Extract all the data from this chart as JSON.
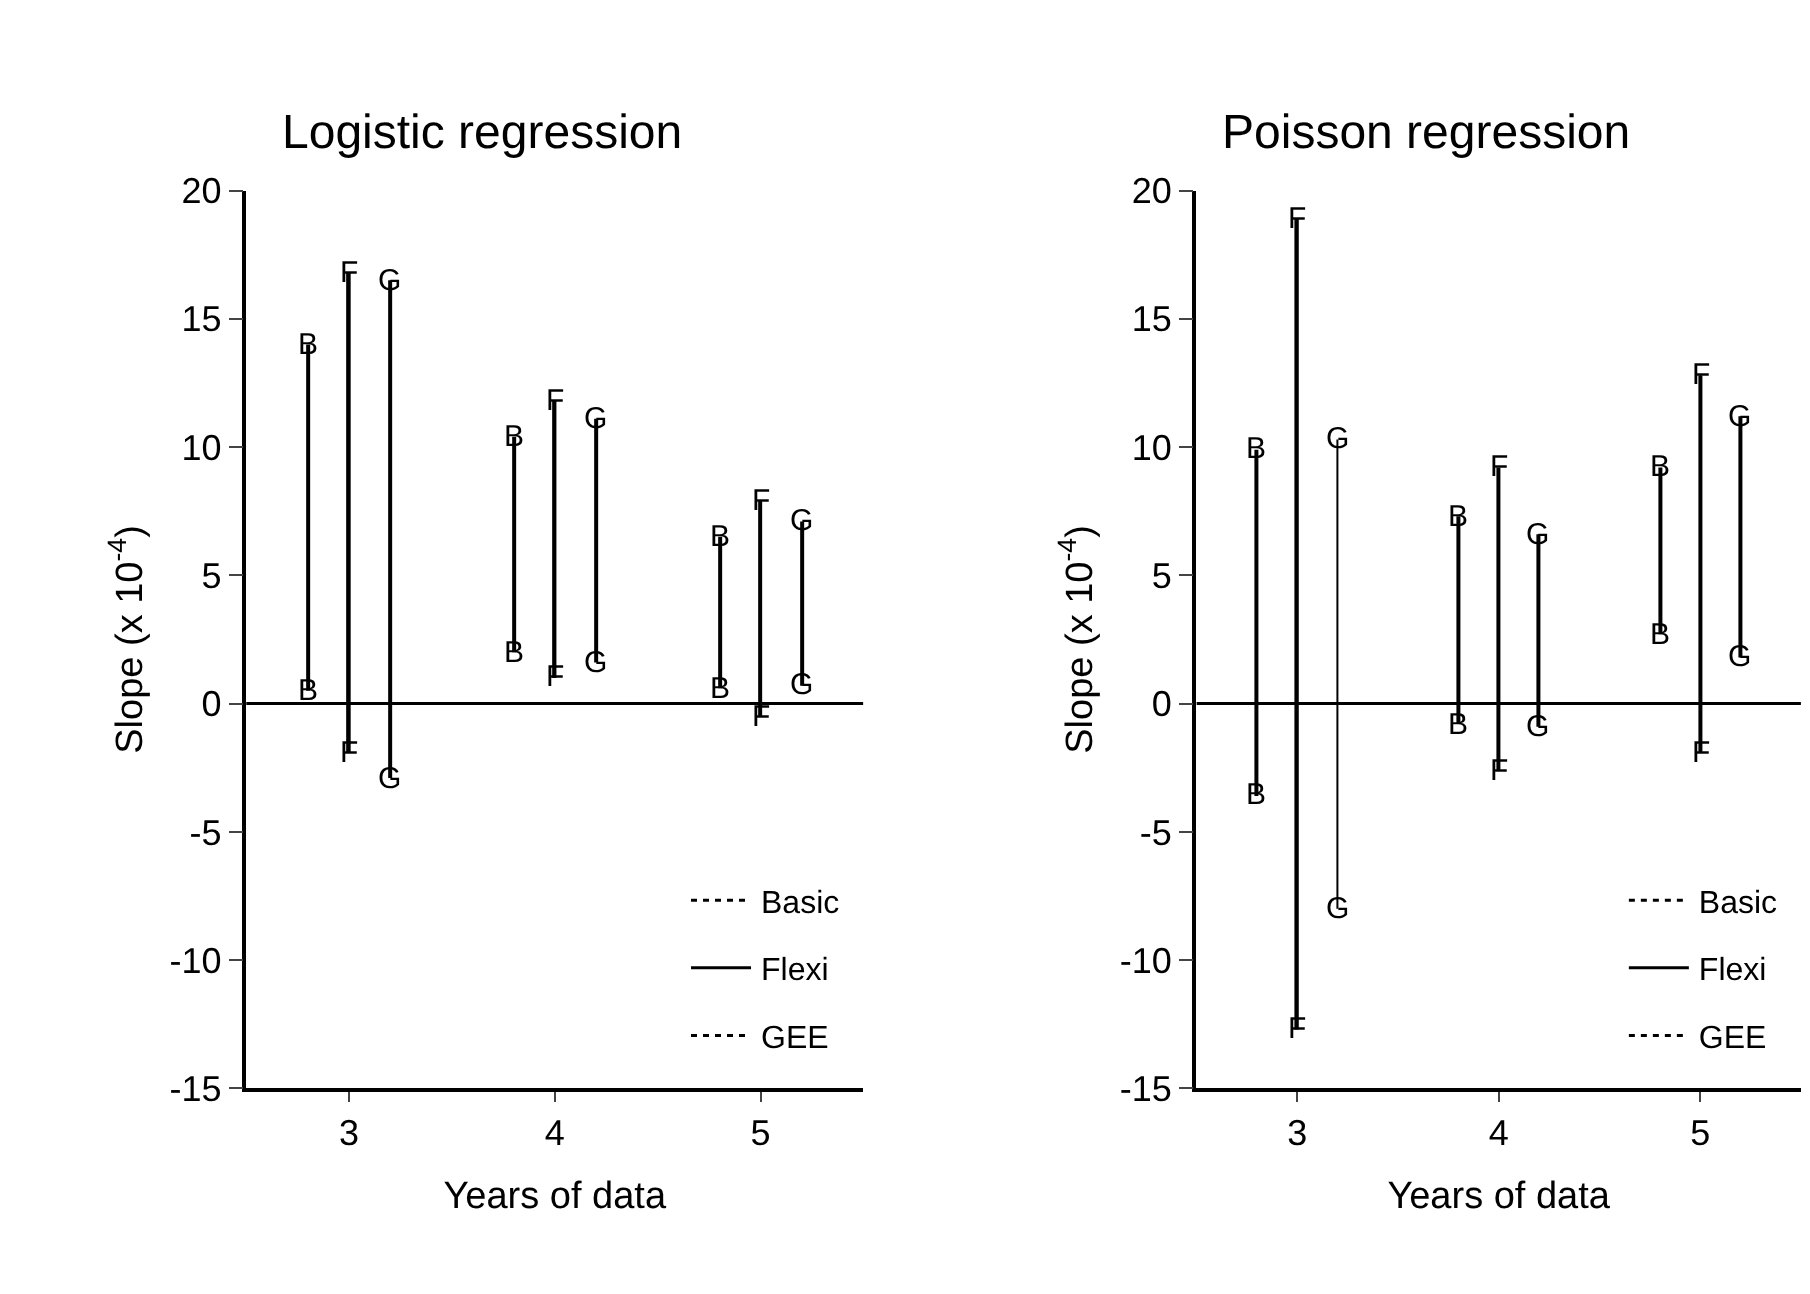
{
  "chart_data": [
    {
      "type": "bar",
      "title": "Logistic regression",
      "xlabel": "Years of data",
      "ylabel": "Slope (x 10$^{-4}$)",
      "xlim": [
        2.5,
        5.5
      ],
      "xticks": [
        3,
        4,
        5
      ],
      "ylim": [
        -15,
        20
      ],
      "yticks": [
        -15,
        -10,
        -5,
        0,
        5,
        10,
        15,
        20
      ],
      "legend": "bottom right",
      "ref_lines": [
        {
          "axis": "y",
          "value": 0,
          "color": "#000000",
          "line_style": "solid"
        }
      ],
      "series": [
        {
          "name": "Basic",
          "color": "#000000",
          "line_style": "dotted",
          "x": [
            2.8,
            3.8,
            4.8
          ],
          "base": [
            0.5,
            2.0,
            0.6
          ],
          "values": [
            13.5,
            8.4,
            5.9
          ]
        },
        {
          "name": "Flexi",
          "color": "#000000",
          "line_style": "solid",
          "x": [
            3,
            4,
            5
          ],
          "base": [
            -1.9,
            1.0,
            -0.5
          ],
          "values": [
            18.7,
            10.8,
            8.4
          ]
        },
        {
          "name": "GEE",
          "color": "#000000",
          "line_style": "dotted",
          "x": [
            3.2,
            4.2,
            5.2
          ],
          "base": [
            -2.9,
            1.6,
            0.7
          ],
          "values": [
            19.4,
            9.5,
            6.4
          ]
        }
      ],
      "annotations": [
        {
          "text": "B",
          "x": 2.8,
          "y": 14.0
        },
        {
          "text": "B",
          "x": 2.8,
          "y": 0.5
        },
        {
          "text": "B",
          "x": 3.8,
          "y": 10.4
        },
        {
          "text": "B",
          "x": 3.8,
          "y": 2.0
        },
        {
          "text": "B",
          "x": 4.8,
          "y": 6.5
        },
        {
          "text": "B",
          "x": 4.8,
          "y": 0.6
        },
        {
          "text": "F",
          "x": 3,
          "y": 16.8
        },
        {
          "text": "F",
          "x": 3,
          "y": -1.9
        },
        {
          "text": "F",
          "x": 4,
          "y": 11.8
        },
        {
          "text": "F",
          "x": 4,
          "y": 1.0
        },
        {
          "text": "F",
          "x": 5,
          "y": 7.9
        },
        {
          "text": "F",
          "x": 5,
          "y": -0.5
        },
        {
          "text": "G",
          "x": 3.2,
          "y": 16.5
        },
        {
          "text": "G",
          "x": 3.2,
          "y": -2.9
        },
        {
          "text": "G",
          "x": 4.2,
          "y": 11.1
        },
        {
          "text": "G",
          "x": 4.2,
          "y": 1.6
        },
        {
          "text": "G",
          "x": 5.2,
          "y": 7.1
        },
        {
          "text": "G",
          "x": 5.2,
          "y": 0.7
        }
      ]
    },
    {
      "type": "bar",
      "title": "Poisson regression",
      "xlabel": "Years of data",
      "ylabel": "Slope (x 10$^{-4}$)",
      "xlim": [
        2.5,
        5.5
      ],
      "xticks": [
        3,
        4,
        5
      ],
      "ylim": [
        -15,
        20
      ],
      "yticks": [
        -15,
        -10,
        -5,
        0,
        5,
        10,
        15,
        20
      ],
      "legend": "bottom right",
      "ref_lines": [
        {
          "axis": "y",
          "value": 0,
          "color": "#000000",
          "line_style": "solid"
        }
      ],
      "series": [
        {
          "name": "Basic",
          "color": "#000000",
          "line_style": "dotted",
          "x": [
            2.8,
            3.8,
            4.8
          ],
          "base": [
            -3.6,
            -0.8,
            2.7
          ],
          "values": [
            13.5,
            8.1,
            6.5
          ]
        },
        {
          "name": "Flexi",
          "color": "#000000",
          "line_style": "solid",
          "x": [
            3,
            4,
            5
          ],
          "base": [
            -12.7,
            -2.6,
            -1.9
          ],
          "values": [
            31.6,
            11.8,
            14.7
          ]
        },
        {
          "name": "GEE",
          "color": "#000000",
          "line_style": "dotted",
          "x": [
            3.2,
            4.2,
            5.2
          ],
          "base": [
            -8.0,
            -0.9,
            1.8
          ],
          "values": [
            18.3,
            7.5,
            9.4
          ]
        }
      ],
      "annotations": [
        {
          "text": "B",
          "x": 2.8,
          "y": 9.9
        },
        {
          "text": "B",
          "x": 2.8,
          "y": -3.6
        },
        {
          "text": "B",
          "x": 3.8,
          "y": 7.3
        },
        {
          "text": "B",
          "x": 3.8,
          "y": -0.8
        },
        {
          "text": "B",
          "x": 4.8,
          "y": 9.2
        },
        {
          "text": "B",
          "x": 4.8,
          "y": 2.7
        },
        {
          "text": "F",
          "x": 3,
          "y": 18.9
        },
        {
          "text": "F",
          "x": 3,
          "y": -12.7
        },
        {
          "text": "F",
          "x": 4,
          "y": 9.2
        },
        {
          "text": "F",
          "x": 4,
          "y": -2.6
        },
        {
          "text": "F",
          "x": 5,
          "y": 12.8
        },
        {
          "text": "F",
          "x": 5,
          "y": -1.9
        },
        {
          "text": "G",
          "x": 3.2,
          "y": 10.3
        },
        {
          "text": "G",
          "x": 3.2,
          "y": -8.0
        },
        {
          "text": "G",
          "x": 4.2,
          "y": 6.6
        },
        {
          "text": "G",
          "x": 4.2,
          "y": -0.9
        },
        {
          "text": "G",
          "x": 5.2,
          "y": 11.2
        },
        {
          "text": "G",
          "x": 5.2,
          "y": 1.8
        }
      ]
    }
  ]
}
